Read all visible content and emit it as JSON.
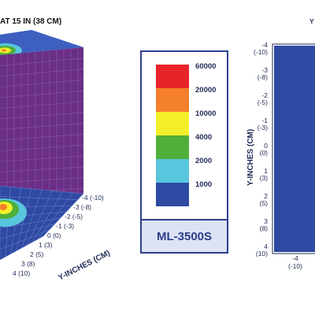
{
  "title": "AT 15 IN (38 CM)",
  "legend": {
    "model": "ML-3500S",
    "entries": [
      {
        "label": "60000",
        "color": "#e8232a"
      },
      {
        "label": "20000",
        "color": "#f4802b"
      },
      {
        "label": "10000",
        "color": "#f4ee2a"
      },
      {
        "label": "4000",
        "color": "#4faf3a"
      },
      {
        "label": "2000",
        "color": "#58c6dc"
      },
      {
        "label": "1000",
        "color": "#2f4aa3"
      }
    ]
  },
  "chart_data": [
    {
      "type": "heatmap",
      "title": "AT 15 IN (38 CM)",
      "ylabel": "Y-INCHES (CM)",
      "y_ticks": [
        "-4 (-10)",
        "-3 (-8)",
        "-2 (-5)",
        "-1 (-3)",
        "0 (0)",
        "1 (3)",
        "2 (5)",
        "3 (8)",
        "4 (10)"
      ],
      "colors": {
        "wall": "#6a2e86",
        "floor": "#2f4aa3",
        "top": "#3d5fbf"
      }
    },
    {
      "type": "heatmap",
      "ylabel": "Y-INCHES (CM)",
      "y_ticks": [
        "-4 (-10)",
        "-3 (-8)",
        "-2 (-5)",
        "-1 (-3)",
        "0 (0)",
        "1 (3)",
        "2 (5)",
        "3 (8)",
        "4 (10)"
      ],
      "x_ticks": [
        "-4 (-10)"
      ],
      "colors": {
        "field": "#2f4aa3"
      }
    }
  ]
}
